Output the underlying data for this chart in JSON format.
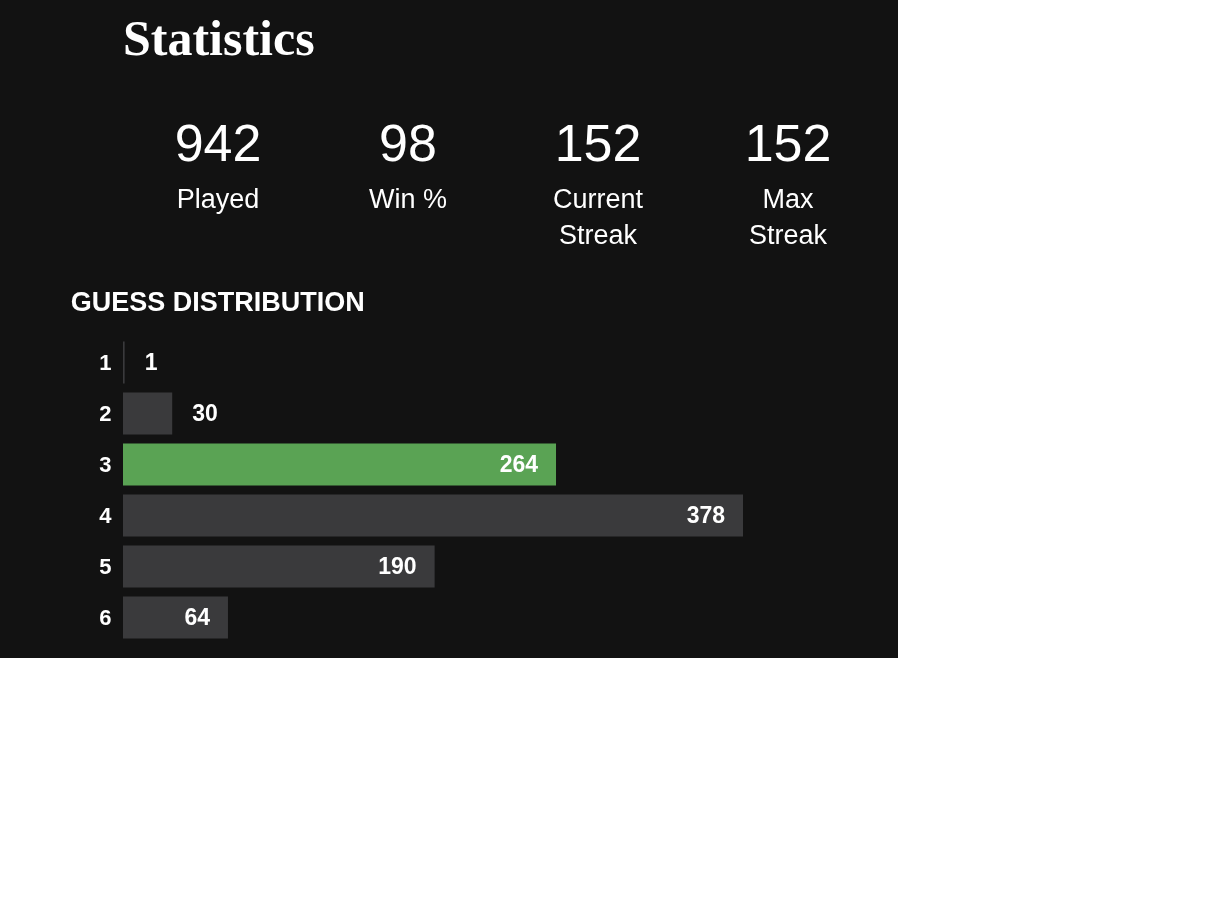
{
  "chart_data": [
    {
      "type": "other",
      "title": "Statistics",
      "annotations": [
        "942",
        "Played",
        "98",
        "Win %",
        "152",
        "Current\nStreak",
        "152",
        "Max\nStreak"
      ]
    },
    {
      "type": "bar",
      "title": "GUESS DISTRIBUTION",
      "orientation": "horizontal",
      "categories": [
        "1",
        "2",
        "3",
        "4",
        "5",
        "6"
      ],
      "values": [
        1,
        30,
        264,
        378,
        190,
        64
      ],
      "colors": [
        "#3a3a3c",
        "#3a3a3c",
        "#5aa354",
        "#3a3a3c",
        "#3a3a3c",
        "#3a3a3c"
      ],
      "data_labels": true
    }
  ]
}
